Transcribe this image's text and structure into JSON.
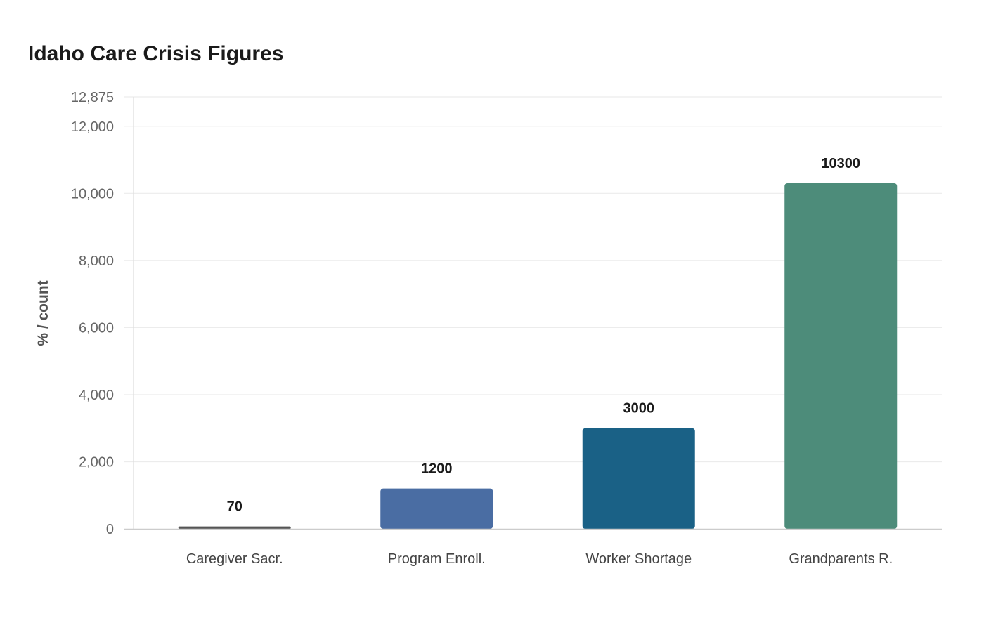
{
  "chart_data": {
    "type": "bar",
    "title": "Idaho Care Crisis Figures",
    "xlabel": "",
    "ylabel": "% / count",
    "categories": [
      "Caregiver Sacr.",
      "Program Enroll.",
      "Worker Shortage",
      "Grandparents R."
    ],
    "values": [
      70,
      1200,
      3000,
      10300
    ],
    "data_labels": [
      "70",
      "1200",
      "3000",
      "10300"
    ],
    "colors": [
      "#555555",
      "#4a6da3",
      "#1a6186",
      "#4d8c7a"
    ],
    "ylim": [
      0,
      12875
    ],
    "yticks": [
      0,
      2000,
      4000,
      6000,
      8000,
      10000,
      12000,
      12875
    ],
    "ytick_labels": [
      "0",
      "2,000",
      "4,000",
      "6,000",
      "8,000",
      "10,000",
      "12,000",
      "12,875"
    ],
    "grid": true,
    "legend": "none"
  }
}
